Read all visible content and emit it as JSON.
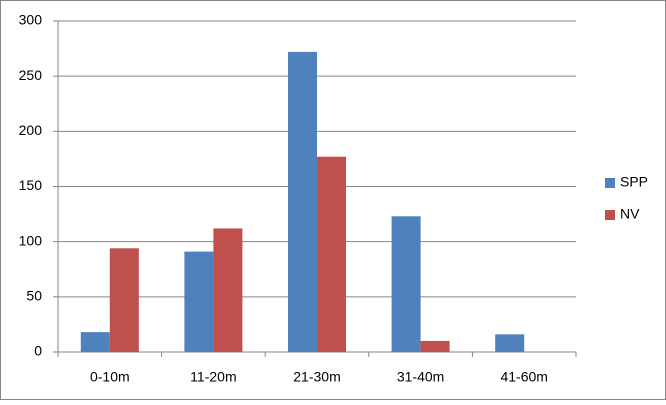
{
  "chart_data": {
    "type": "bar",
    "categories": [
      "0-10m",
      "11-20m",
      "21-30m",
      "31-40m",
      "41-60m"
    ],
    "series": [
      {
        "name": "SPP",
        "color": "#4f81bd",
        "values": [
          18,
          91,
          272,
          123,
          16
        ]
      },
      {
        "name": "NV",
        "color": "#c0504d",
        "values": [
          94,
          112,
          177,
          10,
          0
        ]
      }
    ],
    "ylim": [
      0,
      300
    ],
    "yticks": [
      0,
      50,
      100,
      150,
      200,
      250,
      300
    ],
    "grid": true,
    "legend": "right"
  }
}
